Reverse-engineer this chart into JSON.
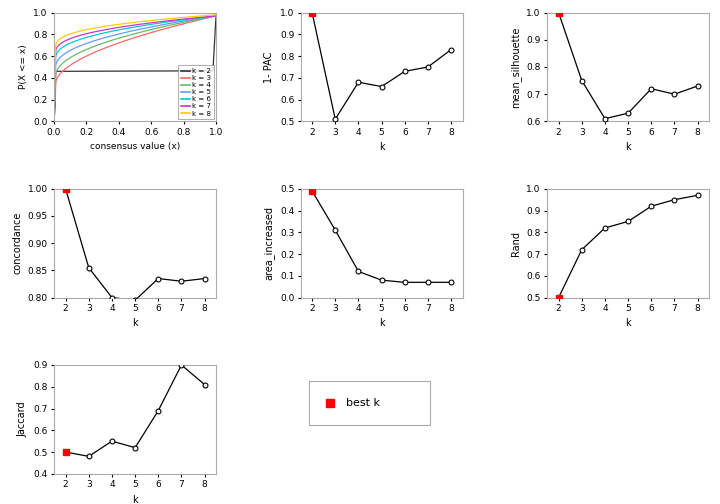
{
  "ecdf_colors": [
    "#333333",
    "#ff6666",
    "#66bb66",
    "#6699ff",
    "#00cccc",
    "#cc33cc",
    "#ffcc00"
  ],
  "ecdf_labels": [
    "k = 2",
    "k = 3",
    "k = 4",
    "k = 5",
    "k = 6",
    "k = 7",
    "k = 8"
  ],
  "k_vals": [
    2,
    3,
    4,
    5,
    6,
    7,
    8
  ],
  "pac1": [
    1.0,
    0.51,
    0.68,
    0.66,
    0.73,
    0.75,
    0.83
  ],
  "silhouette": [
    1.0,
    0.75,
    0.61,
    0.63,
    0.72,
    0.7,
    0.73
  ],
  "concordance": [
    1.0,
    0.855,
    0.8,
    0.795,
    0.835,
    0.83,
    0.835
  ],
  "area_increased": [
    0.49,
    0.31,
    0.12,
    0.08,
    0.07,
    0.07,
    0.07
  ],
  "rand": [
    0.5,
    0.72,
    0.82,
    0.85,
    0.92,
    0.95,
    0.97
  ],
  "jaccard": [
    0.5,
    0.48,
    0.55,
    0.52,
    0.69,
    0.9,
    0.81
  ],
  "best_k_index": 0,
  "xlabel_ecdf": "consensus value (x)",
  "ylabel_ecdf": "P(X <= x)",
  "ylabel_pac": "1- PAC",
  "ylabel_silhouette": "mean_silhouette",
  "ylabel_concordance": "concordance",
  "ylabel_area": "area_increased",
  "ylabel_rand": "Rand",
  "ylabel_jaccard": "Jaccard",
  "xlabel_k": "k",
  "best_k_label": "best k"
}
